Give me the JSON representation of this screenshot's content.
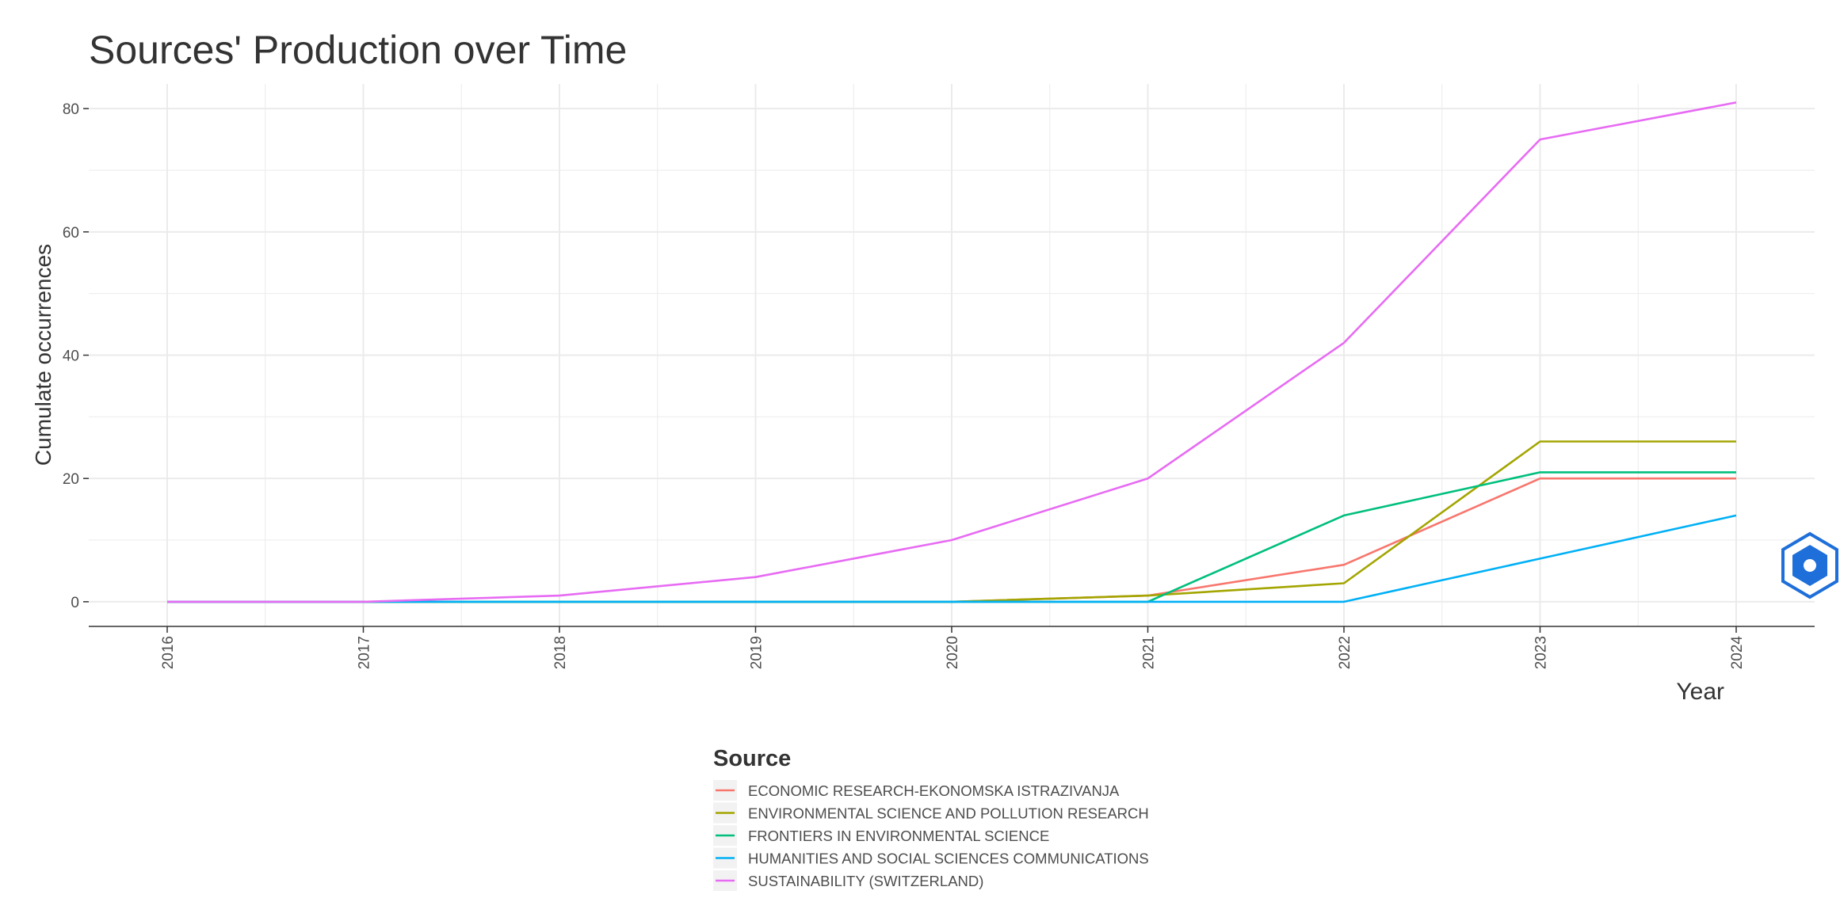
{
  "chart_data": {
    "type": "line",
    "title": "Sources' Production over Time",
    "xlabel": "Year",
    "ylabel": "Cumulate occurrences",
    "x": [
      2016,
      2017,
      2018,
      2019,
      2020,
      2021,
      2022,
      2023,
      2024
    ],
    "x_tick_labels": [
      "2016",
      "2017",
      "2018",
      "2019",
      "2020",
      "2021",
      "2022",
      "2023",
      "2024"
    ],
    "y_ticks": [
      0,
      20,
      40,
      60,
      80
    ],
    "y_tick_labels": [
      "0",
      "20",
      "40",
      "60",
      "80"
    ],
    "xlim": [
      2015.6,
      2024.4
    ],
    "ylim": [
      -4,
      84
    ],
    "grid": true,
    "legend_title": "Source",
    "legend_position": "bottom",
    "series": [
      {
        "name": "ECONOMIC RESEARCH-EKONOMSKA ISTRAZIVANJA",
        "color": "#F8766D",
        "values": [
          0,
          0,
          0,
          0,
          0,
          1,
          6,
          20,
          20
        ]
      },
      {
        "name": "ENVIRONMENTAL SCIENCE AND POLLUTION RESEARCH",
        "color": "#A3A500",
        "values": [
          0,
          0,
          0,
          0,
          0,
          1,
          3,
          26,
          26
        ]
      },
      {
        "name": "FRONTIERS IN ENVIRONMENTAL SCIENCE",
        "color": "#00BF7D",
        "values": [
          0,
          0,
          0,
          0,
          0,
          0,
          14,
          21,
          21
        ]
      },
      {
        "name": "HUMANITIES AND SOCIAL SCIENCES COMMUNICATIONS",
        "color": "#00B0F6",
        "values": [
          0,
          0,
          0,
          0,
          0,
          0,
          0,
          7,
          14
        ]
      },
      {
        "name": "SUSTAINABILITY (SWITZERLAND)",
        "color": "#E76BF3",
        "values": [
          0,
          0,
          1,
          4,
          10,
          20,
          42,
          75,
          81
        ]
      }
    ]
  },
  "colors": {
    "background": "#ffffff",
    "grid": "#ebebeb",
    "axis": "#333333",
    "watermark": "#1e6fd9"
  },
  "icons": {
    "watermark": "bibliometrix-logo-icon"
  }
}
